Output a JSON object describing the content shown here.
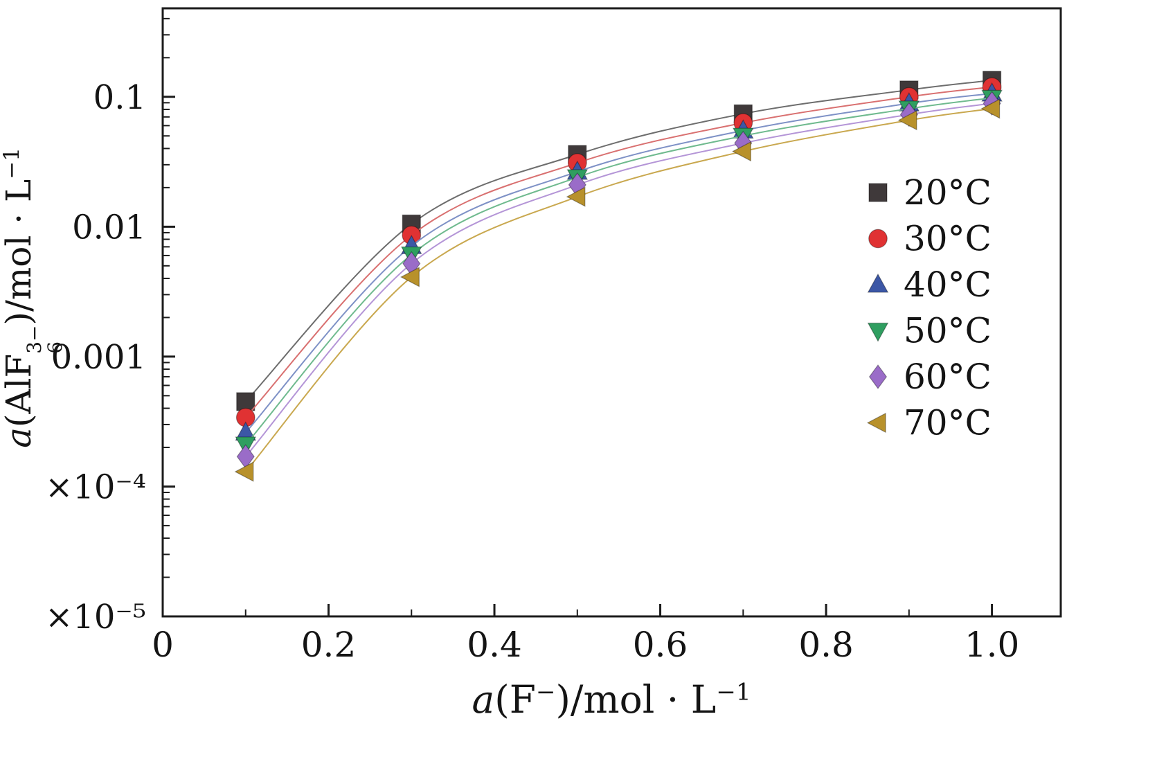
{
  "chart_data": {
    "type": "line",
    "title": "",
    "yscale": "log",
    "grid": false,
    "legend_position": "right-inside",
    "xlabel": {
      "pre": "a",
      "open": "(F",
      "sup": "−",
      "close": ")/mol · L",
      "exp": "−1"
    },
    "ylabel": {
      "pre": "a",
      "open": "(AlF",
      "sup": "3−",
      "sub": "6",
      "close": ")/mol · L",
      "exp": "−1"
    },
    "x": [
      0.1,
      0.3,
      0.5,
      0.7,
      0.9,
      1.0
    ],
    "xlim": [
      0,
      1.083
    ],
    "ylim": [
      1e-05,
      0.48
    ],
    "x_ticks": {
      "values": [
        0,
        0.2,
        0.4,
        0.6,
        0.8,
        1.0
      ],
      "labels": [
        "0",
        "0.2",
        "0.4",
        "0.6",
        "0.8",
        "1.0"
      ],
      "minor_values": [
        0.1,
        0.3,
        0.5,
        0.7,
        0.9
      ]
    },
    "y_ticks": {
      "values": [
        0.1,
        0.01,
        0.001,
        0.0001,
        1e-05
      ],
      "labels": [
        "0.1",
        "0.01",
        "0.001",
        "×10⁻⁴",
        "×10⁻⁵"
      ]
    },
    "axis_color": "#1b1b1b",
    "series": [
      {
        "name": "20°C",
        "marker": "square",
        "color": "#3f393a",
        "line_color": "#6d6d6d",
        "values": [
          0.00045,
          0.0105,
          0.036,
          0.074,
          0.113,
          0.134
        ]
      },
      {
        "name": "30°C",
        "marker": "circle",
        "color": "#e03233",
        "line_color": "#d97070",
        "values": [
          0.00034,
          0.0086,
          0.031,
          0.063,
          0.1,
          0.119
        ]
      },
      {
        "name": "40°C",
        "marker": "triangle-up",
        "color": "#3c57a6",
        "line_color": "#7e91c6",
        "values": [
          0.00026,
          0.0071,
          0.0265,
          0.055,
          0.089,
          0.106
        ]
      },
      {
        "name": "50°C",
        "marker": "triangle-down",
        "color": "#2f9e60",
        "line_color": "#6fba8e",
        "values": [
          0.00021,
          0.0061,
          0.024,
          0.05,
          0.081,
          0.098
        ]
      },
      {
        "name": "60°C",
        "marker": "diamond",
        "color": "#9a6cc8",
        "line_color": "#b495d7",
        "values": [
          0.00017,
          0.0052,
          0.021,
          0.044,
          0.073,
          0.089
        ]
      },
      {
        "name": "70°C",
        "marker": "triangle-left",
        "color": "#b8912b",
        "line_color": "#c9a84f",
        "values": [
          0.00013,
          0.0041,
          0.017,
          0.038,
          0.066,
          0.081
        ]
      }
    ]
  }
}
